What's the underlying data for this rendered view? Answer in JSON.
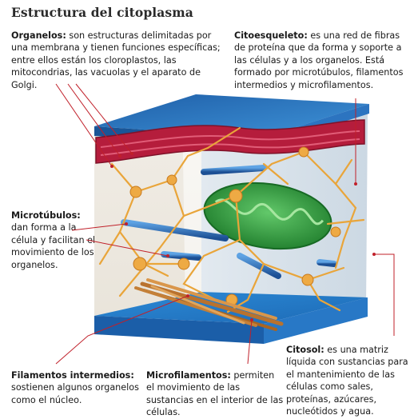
{
  "title": "Estructura del citoplasma",
  "labels": {
    "organelos": {
      "term": "Organelos:",
      "text": "son estructuras delimitadas por una membrana y tienen funciones específicas; entre ellos están los cloroplastos, las mitocondrias, las vacuolas y el aparato de Golgi."
    },
    "citoesqueleto": {
      "term": "Citoesqueleto:",
      "text": "es una red de fibras de proteína que da forma y soporte a las células y a los organelos. Está formado por microtúbulos, filamentos intermedios y microfilamentos."
    },
    "microtubulos": {
      "term": "Microtúbulos:",
      "text": "dan forma a la célula y facilitan el movimiento de los organelos."
    },
    "filamentos": {
      "term": "Filamentos intermedios:",
      "text": "sostienen algunos organelos como el núcleo."
    },
    "microfilamentos": {
      "term": "Microfilamentos:",
      "text": "permiten el movimiento de las sustancias en el interior de las células."
    },
    "citosol": {
      "term": "Citosol:",
      "text": "es una matriz líquida con sustancias para el mantenimiento de las células como sales, proteínas, azúcares, nucleótidos y agua."
    }
  },
  "colors": {
    "leader_line": "#c0202a",
    "membrane": "#2f7ec8",
    "organelle": "#b81c3a",
    "mitochondria": "#2e9a3a",
    "filament": "#e9a53a",
    "microtubule": "#2e6db8"
  }
}
